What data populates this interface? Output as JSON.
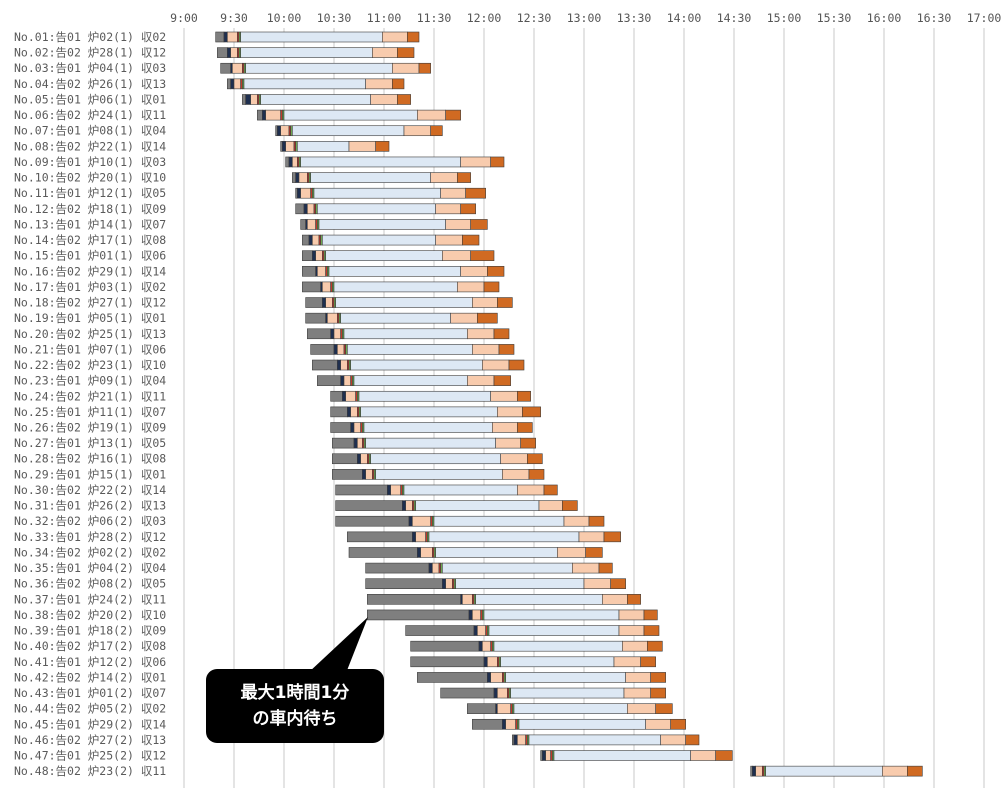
{
  "chart_data": {
    "type": "bar",
    "orientation": "horizontal",
    "stacked": true,
    "x_range": [
      "9:00",
      "17:00"
    ],
    "x_ticks": [
      "9:00",
      "9:30",
      "10:00",
      "10:30",
      "11:00",
      "11:30",
      "12:00",
      "12:30",
      "13:00",
      "13:30",
      "14:00",
      "14:30",
      "15:00",
      "15:30",
      "16:00",
      "16:30",
      "17:00"
    ],
    "x_axis_position": "top",
    "grid": true,
    "legend": "none",
    "segment_colors": [
      "#7f7f7f",
      "#1f2f4f",
      "#f8cbad",
      "#c0392b",
      "#6aa84f",
      "#dde8f4",
      "#f8cbad",
      "#d06a22"
    ],
    "rows": [
      {
        "label": "No.01:告01 炉02(1) 収02",
        "times": [
          "9:19",
          "9:24",
          "9:26",
          "9:32",
          "9:33",
          "9:34",
          "10:59",
          "11:14",
          "11:21"
        ]
      },
      {
        "label": "No.02:告02 炉28(1) 収12",
        "times": [
          "9:20",
          "9:26",
          "9:28",
          "9:32",
          "9:33",
          "9:34",
          "10:53",
          "11:08",
          "11:18"
        ]
      },
      {
        "label": "No.03:告01 炉04(1) 収03",
        "times": [
          "9:22",
          "9:28",
          "9:29",
          "9:35",
          "9:36",
          "9:37",
          "11:05",
          "11:21",
          "11:28"
        ]
      },
      {
        "label": "No.04:告02 炉26(1) 収13",
        "times": [
          "9:26",
          "9:28",
          "9:30",
          "9:34",
          "9:35",
          "9:36",
          "10:49",
          "11:05",
          "11:12"
        ]
      },
      {
        "label": "No.05:告01 炉06(1) 収01",
        "times": [
          "9:35",
          "9:37",
          "9:40",
          "9:44",
          "9:45",
          "9:46",
          "10:52",
          "11:08",
          "11:16"
        ]
      },
      {
        "label": "No.06:告02 炉24(1) 収11",
        "times": [
          "9:44",
          "9:47",
          "9:49",
          "9:58",
          "9:59",
          "10:00",
          "11:20",
          "11:37",
          "11:46"
        ]
      },
      {
        "label": "No.07:告01 炉08(1) 収04",
        "times": [
          "9:55",
          "9:56",
          "9:58",
          "10:03",
          "10:04",
          "10:05",
          "11:12",
          "11:28",
          "11:35"
        ]
      },
      {
        "label": "No.08:告02 炉22(1) 収14",
        "times": [
          "9:58",
          "9:59",
          "10:01",
          "10:06",
          "10:07",
          "10:08",
          "10:39",
          "10:55",
          "11:03"
        ]
      },
      {
        "label": "No.09:告01 炉10(1) 収03",
        "times": [
          "10:01",
          "10:03",
          "10:05",
          "10:08",
          "10:09",
          "10:10",
          "11:46",
          "12:04",
          "12:12"
        ]
      },
      {
        "label": "No.10:告02 炉20(1) 収10",
        "times": [
          "10:05",
          "10:07",
          "10:09",
          "10:14",
          "10:15",
          "10:16",
          "11:28",
          "11:44",
          "11:52"
        ]
      },
      {
        "label": "No.11:告01 炉12(1) 収05",
        "times": [
          "10:07",
          "10:08",
          "10:10",
          "10:16",
          "10:17",
          "10:18",
          "11:34",
          "11:49",
          "12:01"
        ]
      },
      {
        "label": "No.12:告02 炉18(1) 収09",
        "times": [
          "10:07",
          "10:12",
          "10:14",
          "10:18",
          "10:19",
          "10:20",
          "11:31",
          "11:46",
          "11:55"
        ]
      },
      {
        "label": "No.13:告01 炉14(1) 収07",
        "times": [
          "10:10",
          "10:13",
          "10:14",
          "10:19",
          "10:20",
          "10:21",
          "11:37",
          "11:52",
          "12:02"
        ]
      },
      {
        "label": "No.14:告02 炉17(1) 収08",
        "times": [
          "10:11",
          "10:15",
          "10:17",
          "10:21",
          "10:22",
          "10:23",
          "11:31",
          "11:47",
          "11:57"
        ]
      },
      {
        "label": "No.15:告01 炉01(1) 収06",
        "times": [
          "10:11",
          "10:17",
          "10:19",
          "10:23",
          "10:24",
          "10:25",
          "11:35",
          "11:52",
          "12:06"
        ]
      },
      {
        "label": "No.16:告02 炉29(1) 収14",
        "times": [
          "10:11",
          "10:19",
          "10:20",
          "10:25",
          "10:26",
          "10:27",
          "11:46",
          "12:02",
          "12:12"
        ]
      },
      {
        "label": "No.17:告01 炉03(1) 収02",
        "times": [
          "10:11",
          "10:22",
          "10:23",
          "10:28",
          "10:29",
          "10:30",
          "11:44",
          "12:00",
          "12:09"
        ]
      },
      {
        "label": "No.18:告02 炉27(1) 収12",
        "times": [
          "10:13",
          "10:23",
          "10:25",
          "10:29",
          "10:30",
          "10:31",
          "11:53",
          "12:08",
          "12:17"
        ]
      },
      {
        "label": "No.19:告01 炉05(1) 収01",
        "times": [
          "10:13",
          "10:25",
          "10:26",
          "10:32",
          "10:33",
          "10:34",
          "11:40",
          "11:56",
          "12:08"
        ]
      },
      {
        "label": "No.20:告02 炉25(1) 収13",
        "times": [
          "10:14",
          "10:28",
          "10:30",
          "10:34",
          "10:35",
          "10:36",
          "11:50",
          "12:06",
          "12:15"
        ]
      },
      {
        "label": "No.21:告01 炉07(1) 収06",
        "times": [
          "10:16",
          "10:30",
          "10:32",
          "10:36",
          "10:37",
          "10:38",
          "11:53",
          "12:09",
          "12:18"
        ]
      },
      {
        "label": "No.22:告02 炉23(1) 収10",
        "times": [
          "10:17",
          "10:32",
          "10:34",
          "10:38",
          "10:39",
          "10:40",
          "11:59",
          "12:15",
          "12:24"
        ]
      },
      {
        "label": "No.23:告01 炉09(1) 収04",
        "times": [
          "10:20",
          "10:34",
          "10:36",
          "10:40",
          "10:41",
          "10:42",
          "11:50",
          "12:06",
          "12:16"
        ]
      },
      {
        "label": "No.24:告02 炉21(1) 収11",
        "times": [
          "10:28",
          "10:35",
          "10:37",
          "10:43",
          "10:44",
          "10:45",
          "12:04",
          "12:20",
          "12:28"
        ]
      },
      {
        "label": "No.25:告01 炉11(1) 収07",
        "times": [
          "10:28",
          "10:38",
          "10:40",
          "10:44",
          "10:45",
          "10:46",
          "12:08",
          "12:23",
          "12:34"
        ]
      },
      {
        "label": "No.26:告02 炉19(1) 収09",
        "times": [
          "10:28",
          "10:40",
          "10:42",
          "10:46",
          "10:47",
          "10:48",
          "12:05",
          "12:20",
          "12:29"
        ]
      },
      {
        "label": "No.27:告01 炉13(1) 収05",
        "times": [
          "10:29",
          "10:42",
          "10:44",
          "10:47",
          "10:48",
          "10:49",
          "12:07",
          "12:22",
          "12:31"
        ]
      },
      {
        "label": "No.28:告02 炉16(1) 収08",
        "times": [
          "10:29",
          "10:44",
          "10:46",
          "10:50",
          "10:51",
          "10:52",
          "12:10",
          "12:26",
          "12:35"
        ]
      },
      {
        "label": "No.29:告01 炉15(1) 収01",
        "times": [
          "10:29",
          "10:47",
          "10:49",
          "10:53",
          "10:54",
          "10:55",
          "12:11",
          "12:27",
          "12:36"
        ]
      },
      {
        "label": "No.30:告02 炉22(2) 収14",
        "times": [
          "10:31",
          "11:02",
          "11:04",
          "11:10",
          "11:11",
          "11:12",
          "12:20",
          "12:36",
          "12:44"
        ]
      },
      {
        "label": "No.31:告01 炉26(2) 収13",
        "times": [
          "10:31",
          "11:11",
          "11:13",
          "11:17",
          "11:18",
          "11:19",
          "12:33",
          "12:47",
          "12:56"
        ]
      },
      {
        "label": "No.32:告02 炉06(2) 収03",
        "times": [
          "10:31",
          "11:15",
          "11:17",
          "11:28",
          "11:29",
          "11:30",
          "12:48",
          "13:03",
          "13:12"
        ]
      },
      {
        "label": "No.33:告01 炉28(2) 収12",
        "times": [
          "10:38",
          "11:17",
          "11:19",
          "11:25",
          "11:26",
          "11:27",
          "12:57",
          "13:12",
          "13:22"
        ]
      },
      {
        "label": "No.34:告02 炉02(2) 収02",
        "times": [
          "10:39",
          "11:20",
          "11:22",
          "11:29",
          "11:30",
          "11:31",
          "12:44",
          "13:01",
          "13:11"
        ]
      },
      {
        "label": "No.35:告01 炉04(2) 収04",
        "times": [
          "10:49",
          "11:27",
          "11:29",
          "11:33",
          "11:34",
          "11:35",
          "12:53",
          "13:09",
          "13:17"
        ]
      },
      {
        "label": "No.36:告02 炉08(2) 収05",
        "times": [
          "10:49",
          "11:35",
          "11:37",
          "11:41",
          "11:42",
          "11:43",
          "13:00",
          "13:16",
          "13:25"
        ]
      },
      {
        "label": "No.37:告01 炉24(2) 収11",
        "times": [
          "10:50",
          "11:46",
          "11:47",
          "11:53",
          "11:54",
          "11:55",
          "13:11",
          "13:26",
          "13:34"
        ]
      },
      {
        "label": "No.38:告02 炉20(2) 収10",
        "times": [
          "10:50",
          "11:51",
          "11:53",
          "11:58",
          "11:59",
          "12:00",
          "13:21",
          "13:36",
          "13:44"
        ]
      },
      {
        "label": "No.39:告01 炉18(2) 収09",
        "times": [
          "11:13",
          "11:54",
          "11:56",
          "12:01",
          "12:02",
          "12:03",
          "13:21",
          "13:36",
          "13:45"
        ]
      },
      {
        "label": "No.40:告02 炉17(2) 収08",
        "times": [
          "11:16",
          "11:57",
          "11:59",
          "12:04",
          "12:05",
          "12:06",
          "13:23",
          "13:38",
          "13:47"
        ]
      },
      {
        "label": "No.41:告01 炉12(2) 収06",
        "times": [
          "11:16",
          "12:00",
          "12:02",
          "12:08",
          "12:09",
          "12:10",
          "13:18",
          "13:34",
          "13:43"
        ]
      },
      {
        "label": "No.42:告02 炉14(2) 収01",
        "times": [
          "11:20",
          "12:02",
          "12:04",
          "12:11",
          "12:12",
          "12:13",
          "13:25",
          "13:40",
          "13:49"
        ]
      },
      {
        "label": "No.43:告01 炉01(2) 収07",
        "times": [
          "11:34",
          "12:06",
          "12:08",
          "12:14",
          "12:15",
          "12:16",
          "13:24",
          "13:40",
          "13:49"
        ]
      },
      {
        "label": "No.44:告02 炉05(2) 収02",
        "times": [
          "11:50",
          "12:07",
          "12:08",
          "12:16",
          "12:17",
          "12:18",
          "13:26",
          "13:43",
          "13:53"
        ]
      },
      {
        "label": "No.45:告01 炉29(2) 収14",
        "times": [
          "11:53",
          "12:11",
          "12:13",
          "12:19",
          "12:20",
          "12:21",
          "13:37",
          "13:52",
          "14:01"
        ]
      },
      {
        "label": "No.46:告02 炉27(2) 収13",
        "times": [
          "12:17",
          "12:18",
          "12:20",
          "12:25",
          "12:26",
          "12:27",
          "13:46",
          "14:01",
          "14:09"
        ]
      },
      {
        "label": "No.47:告01 炉25(2) 収12",
        "times": [
          "12:34",
          "12:35",
          "12:37",
          "12:40",
          "12:41",
          "12:42",
          "14:04",
          "14:19",
          "14:29"
        ]
      },
      {
        "label": "No.48:告02 炉23(2) 収11",
        "times": [
          "14:40",
          "14:41",
          "14:43",
          "14:47",
          "14:48",
          "14:49",
          "15:59",
          "16:14",
          "16:23"
        ]
      }
    ],
    "callout": {
      "lines": [
        "最大1時間1分",
        "の車内待ち"
      ]
    }
  }
}
